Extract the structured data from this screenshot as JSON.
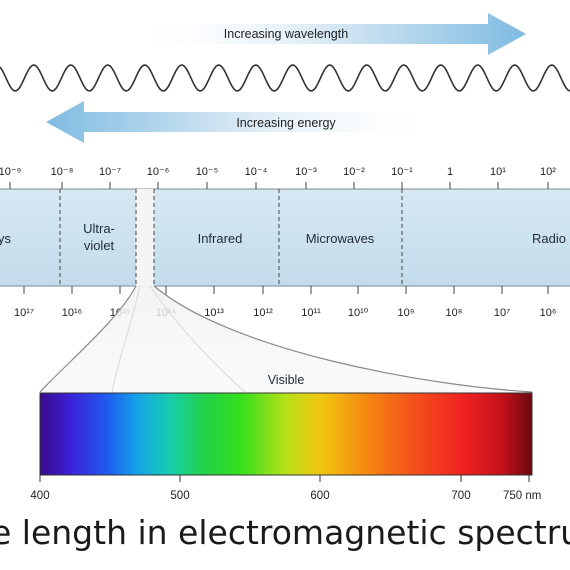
{
  "arrows": {
    "wavelength": "Increasing wavelength",
    "energy": "Increasing energy"
  },
  "wavelength_ticks": [
    "10⁻⁹",
    "10⁻⁸",
    "10⁻⁷",
    "10⁻⁶",
    "10⁻⁵",
    "10⁻⁴",
    "10⁻³",
    "10⁻²",
    "10⁻¹",
    "1",
    "10¹",
    "10²"
  ],
  "frequency_ticks": [
    "10¹⁷",
    "10¹⁶",
    "10¹⁵",
    "10¹⁴",
    "10¹³",
    "10¹²",
    "10¹¹",
    "10¹⁰",
    "10⁹",
    "10⁸",
    "10⁷",
    "10⁶"
  ],
  "regions": {
    "xrays": "ys",
    "ultraviolet_line1": "Ultra-",
    "ultraviolet_line2": "violet",
    "infrared": "Infrared",
    "microwaves": "Microwaves",
    "radio": "Radio"
  },
  "visible": {
    "label": "Visible",
    "ticks": [
      "400",
      "500",
      "600",
      "700",
      "750 nm"
    ]
  },
  "caption": "e length in electromagnetic spectrum",
  "colors": {
    "band": "#cfe3ef",
    "arrow": "#8ec3e3",
    "wave": "#333333"
  }
}
